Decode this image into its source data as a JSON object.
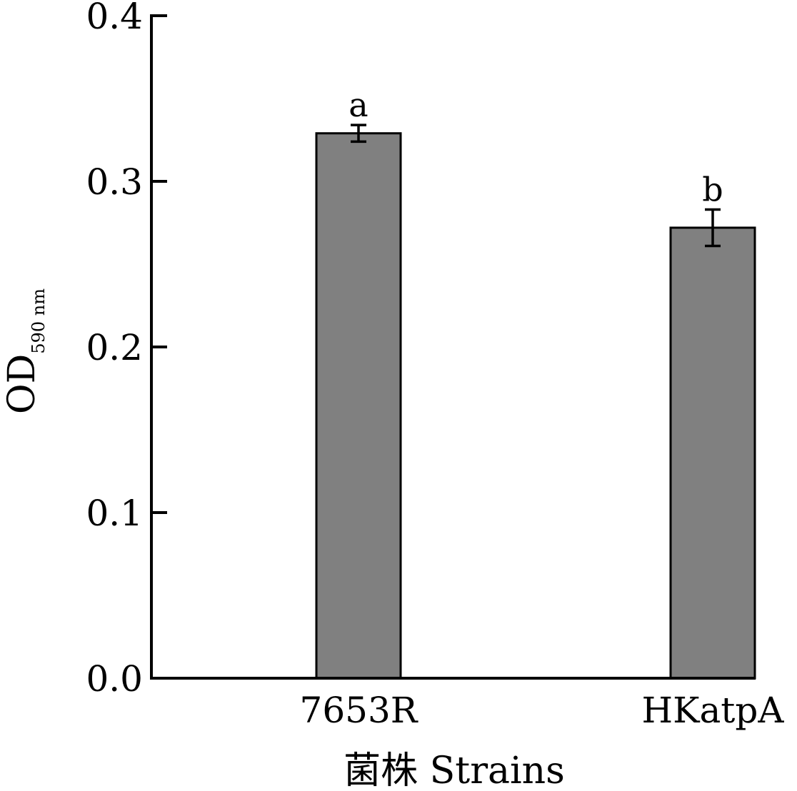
{
  "chart_data": {
    "type": "bar",
    "categories": [
      "7653R",
      "HKatpA"
    ],
    "values": [
      0.329,
      0.272
    ],
    "errors": [
      0.005,
      0.011
    ],
    "significance": [
      "a",
      "b"
    ],
    "title": "",
    "xlabel": "菌株 Strains",
    "ylabel": "OD",
    "ylabel_subscript": "590 nm",
    "ylim": [
      0,
      0.4
    ],
    "yticks": [
      "0.0",
      "0.1",
      "0.2",
      "0.3",
      "0.4"
    ],
    "bar_color": "#808080",
    "grid": false,
    "legend": "none"
  }
}
